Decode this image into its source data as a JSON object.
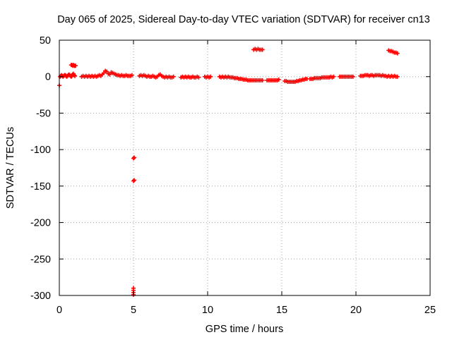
{
  "chart_data": {
    "type": "scatter",
    "title": "Day 065 of 2025, Sidereal Day-to-day VTEC variation (SDTVAR) for receiver cn13",
    "xlabel": "GPS time / hours",
    "ylabel": "SDTVAR / TECUs",
    "xlim": [
      0,
      25
    ],
    "ylim": [
      -300,
      50
    ],
    "xticks": [
      "0",
      "5",
      "10",
      "15",
      "20",
      "25"
    ],
    "yticks": [
      "50",
      "0",
      "-50",
      "-100",
      "-150",
      "-200",
      "-250",
      "-300"
    ],
    "grid": true,
    "marker": "+",
    "color": "#ff0000",
    "series": [
      {
        "name": "SDTVAR",
        "points": [
          [
            0.0,
            -12
          ],
          [
            0.05,
            0
          ],
          [
            0.1,
            1
          ],
          [
            0.15,
            2
          ],
          [
            0.2,
            1
          ],
          [
            0.25,
            0
          ],
          [
            0.3,
            1
          ],
          [
            0.35,
            2
          ],
          [
            0.4,
            2
          ],
          [
            0.45,
            1
          ],
          [
            0.5,
            0
          ],
          [
            0.55,
            1
          ],
          [
            0.6,
            2
          ],
          [
            0.65,
            3
          ],
          [
            0.7,
            2
          ],
          [
            0.75,
            1
          ],
          [
            0.8,
            0
          ],
          [
            0.85,
            1
          ],
          [
            0.9,
            3
          ],
          [
            0.95,
            4
          ],
          [
            1.0,
            2
          ],
          [
            1.05,
            1
          ],
          [
            0.8,
            16
          ],
          [
            0.85,
            16
          ],
          [
            0.9,
            15
          ],
          [
            0.95,
            16
          ],
          [
            1.0,
            15
          ],
          [
            1.05,
            15
          ],
          [
            1.1,
            15
          ],
          [
            1.5,
            0
          ],
          [
            1.6,
            1
          ],
          [
            1.7,
            0
          ],
          [
            1.8,
            1
          ],
          [
            1.9,
            0
          ],
          [
            2.0,
            1
          ],
          [
            2.1,
            0
          ],
          [
            2.2,
            1
          ],
          [
            2.3,
            0
          ],
          [
            2.4,
            1
          ],
          [
            2.5,
            0
          ],
          [
            2.6,
            1
          ],
          [
            2.7,
            2
          ],
          [
            2.8,
            1
          ],
          [
            2.9,
            3
          ],
          [
            3.0,
            5
          ],
          [
            3.1,
            8
          ],
          [
            3.2,
            7
          ],
          [
            3.3,
            4
          ],
          [
            3.4,
            3
          ],
          [
            3.5,
            6
          ],
          [
            3.6,
            5
          ],
          [
            3.7,
            4
          ],
          [
            3.8,
            3
          ],
          [
            3.9,
            2
          ],
          [
            4.0,
            2
          ],
          [
            4.1,
            1
          ],
          [
            4.2,
            2
          ],
          [
            4.3,
            1
          ],
          [
            4.4,
            1
          ],
          [
            4.5,
            2
          ],
          [
            4.6,
            1
          ],
          [
            4.7,
            1
          ],
          [
            4.8,
            1
          ],
          [
            4.9,
            2
          ],
          [
            5.0,
            -112
          ],
          [
            5.05,
            -111
          ],
          [
            5.0,
            -143
          ],
          [
            5.05,
            -142
          ],
          [
            5.0,
            -290
          ],
          [
            5.0,
            -293
          ],
          [
            5.0,
            -296
          ],
          [
            5.0,
            -299
          ],
          [
            5.4,
            1
          ],
          [
            5.5,
            2
          ],
          [
            5.6,
            1
          ],
          [
            5.7,
            2
          ],
          [
            5.8,
            1
          ],
          [
            5.9,
            0
          ],
          [
            6.0,
            1
          ],
          [
            6.1,
            0
          ],
          [
            6.2,
            0
          ],
          [
            6.3,
            1
          ],
          [
            6.4,
            0
          ],
          [
            6.5,
            -1
          ],
          [
            6.6,
            0
          ],
          [
            6.7,
            2
          ],
          [
            6.8,
            3
          ],
          [
            6.9,
            1
          ],
          [
            7.0,
            0
          ],
          [
            7.1,
            -1
          ],
          [
            7.2,
            0
          ],
          [
            7.3,
            -1
          ],
          [
            7.4,
            0
          ],
          [
            7.5,
            -1
          ],
          [
            7.6,
            -1
          ],
          [
            7.7,
            0
          ],
          [
            8.2,
            -1
          ],
          [
            8.3,
            0
          ],
          [
            8.4,
            -1
          ],
          [
            8.5,
            0
          ],
          [
            8.6,
            -1
          ],
          [
            8.7,
            0
          ],
          [
            8.8,
            -1
          ],
          [
            8.9,
            -1
          ],
          [
            9.0,
            0
          ],
          [
            9.1,
            -1
          ],
          [
            9.2,
            -1
          ],
          [
            9.3,
            0
          ],
          [
            9.4,
            -1
          ],
          [
            9.8,
            0
          ],
          [
            9.9,
            -1
          ],
          [
            10.0,
            0
          ],
          [
            10.1,
            -1
          ],
          [
            10.2,
            0
          ],
          [
            10.8,
            0
          ],
          [
            10.9,
            -1
          ],
          [
            11.0,
            0
          ],
          [
            11.1,
            -1
          ],
          [
            11.2,
            0
          ],
          [
            11.3,
            -1
          ],
          [
            11.4,
            0
          ],
          [
            11.5,
            -1
          ],
          [
            11.6,
            -1
          ],
          [
            11.7,
            -1
          ],
          [
            11.8,
            -2
          ],
          [
            11.9,
            -2
          ],
          [
            12.0,
            -2
          ],
          [
            12.1,
            -3
          ],
          [
            12.2,
            -3
          ],
          [
            12.3,
            -3
          ],
          [
            12.4,
            -4
          ],
          [
            12.5,
            -4
          ],
          [
            12.6,
            -4
          ],
          [
            12.7,
            -5
          ],
          [
            12.8,
            -5
          ],
          [
            12.9,
            -5
          ],
          [
            13.0,
            -5
          ],
          [
            13.1,
            -5
          ],
          [
            13.2,
            -5
          ],
          [
            13.3,
            -5
          ],
          [
            13.4,
            -5
          ],
          [
            13.5,
            -5
          ],
          [
            13.6,
            -5
          ],
          [
            13.7,
            -5
          ],
          [
            13.1,
            37
          ],
          [
            13.2,
            38
          ],
          [
            13.3,
            37
          ],
          [
            13.4,
            38
          ],
          [
            13.5,
            37
          ],
          [
            13.6,
            37
          ],
          [
            13.7,
            37
          ],
          [
            14.0,
            -5
          ],
          [
            14.1,
            -5
          ],
          [
            14.2,
            -5
          ],
          [
            14.3,
            -5
          ],
          [
            14.4,
            -5
          ],
          [
            14.5,
            -5
          ],
          [
            14.6,
            -5
          ],
          [
            14.7,
            -5
          ],
          [
            14.8,
            -4
          ],
          [
            15.2,
            -6
          ],
          [
            15.3,
            -6
          ],
          [
            15.4,
            -7
          ],
          [
            15.5,
            -7
          ],
          [
            15.6,
            -7
          ],
          [
            15.7,
            -7
          ],
          [
            15.8,
            -7
          ],
          [
            15.9,
            -7
          ],
          [
            16.0,
            -6
          ],
          [
            16.1,
            -6
          ],
          [
            16.2,
            -5
          ],
          [
            16.3,
            -5
          ],
          [
            16.4,
            -4
          ],
          [
            16.5,
            -4
          ],
          [
            16.6,
            -3
          ],
          [
            16.7,
            -3
          ],
          [
            16.9,
            -3
          ],
          [
            17.0,
            -3
          ],
          [
            17.1,
            -3
          ],
          [
            17.2,
            -2
          ],
          [
            17.3,
            -2
          ],
          [
            17.4,
            -2
          ],
          [
            17.5,
            -2
          ],
          [
            17.6,
            -2
          ],
          [
            17.7,
            -1
          ],
          [
            17.8,
            -1
          ],
          [
            17.9,
            -1
          ],
          [
            18.0,
            -1
          ],
          [
            18.1,
            -1
          ],
          [
            18.2,
            -1
          ],
          [
            18.3,
            0
          ],
          [
            18.4,
            -1
          ],
          [
            18.5,
            0
          ],
          [
            18.9,
            0
          ],
          [
            19.0,
            0
          ],
          [
            19.1,
            0
          ],
          [
            19.2,
            0
          ],
          [
            19.3,
            0
          ],
          [
            19.4,
            0
          ],
          [
            19.5,
            0
          ],
          [
            19.6,
            0
          ],
          [
            19.7,
            0
          ],
          [
            19.8,
            0
          ],
          [
            20.3,
            1
          ],
          [
            20.4,
            1
          ],
          [
            20.5,
            1
          ],
          [
            20.6,
            2
          ],
          [
            20.7,
            2
          ],
          [
            20.8,
            2
          ],
          [
            20.9,
            1
          ],
          [
            21.0,
            2
          ],
          [
            21.1,
            2
          ],
          [
            21.2,
            1
          ],
          [
            21.3,
            2
          ],
          [
            21.4,
            2
          ],
          [
            21.5,
            2
          ],
          [
            21.6,
            2
          ],
          [
            21.7,
            1
          ],
          [
            21.8,
            2
          ],
          [
            21.9,
            1
          ],
          [
            22.0,
            1
          ],
          [
            22.1,
            0
          ],
          [
            22.2,
            1
          ],
          [
            22.3,
            0
          ],
          [
            22.4,
            1
          ],
          [
            22.5,
            0
          ],
          [
            22.6,
            1
          ],
          [
            22.7,
            0
          ],
          [
            22.8,
            0
          ],
          [
            22.2,
            36
          ],
          [
            22.3,
            35
          ],
          [
            22.4,
            35
          ],
          [
            22.5,
            34
          ],
          [
            22.6,
            33
          ],
          [
            22.7,
            33
          ],
          [
            22.8,
            32
          ]
        ]
      }
    ]
  }
}
